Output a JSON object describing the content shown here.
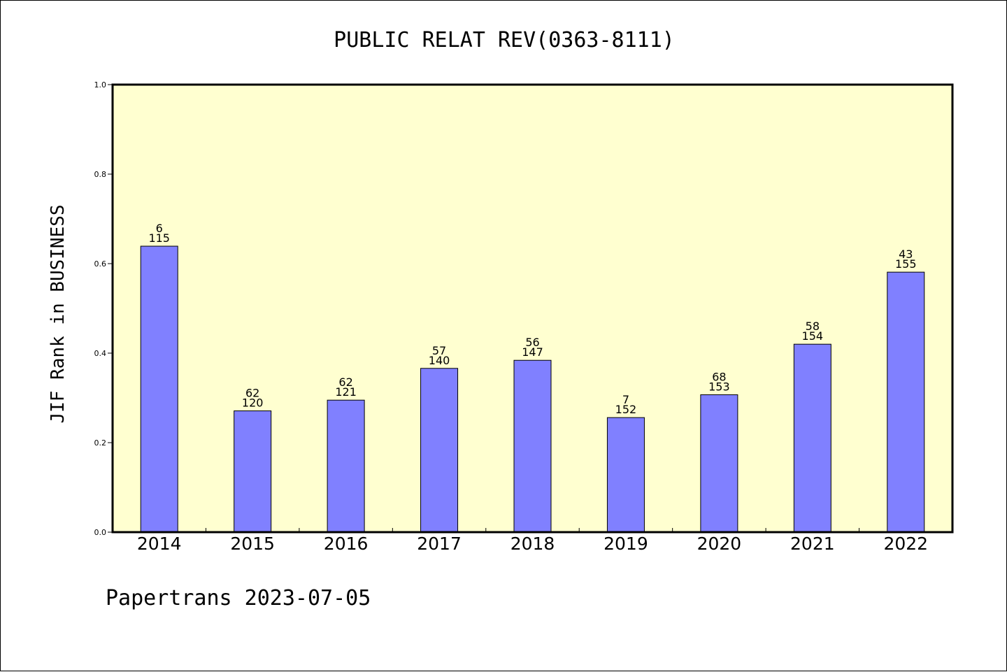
{
  "chart_data": {
    "type": "bar",
    "title": "PUBLIC RELAT REV(0363-8111)",
    "ylabel": "JIF Rank in BUSINESS",
    "xlabel": "",
    "categories": [
      "2014",
      "2015",
      "2016",
      "2017",
      "2018",
      "2019",
      "2020",
      "2021",
      "2022"
    ],
    "values": [
      0.639,
      0.271,
      0.295,
      0.366,
      0.384,
      0.256,
      0.307,
      0.42,
      0.581
    ],
    "ranks": [
      "6",
      "62",
      "62",
      "57",
      "56",
      "7",
      "68",
      "58",
      "43"
    ],
    "totals": [
      "115",
      "120",
      "121",
      "140",
      "147",
      "152",
      "153",
      "154",
      "155"
    ],
    "ylim": [
      0,
      1
    ],
    "yticks": [
      "0.0",
      "0.2",
      "0.4",
      "0.6",
      "0.8",
      "1.0"
    ],
    "grid": false,
    "colors": {
      "bar": "#8080ff",
      "plot_background": "#ffffd0",
      "axis": "#000000"
    }
  },
  "footer": {
    "text": "Papertrans 2023-07-05"
  }
}
